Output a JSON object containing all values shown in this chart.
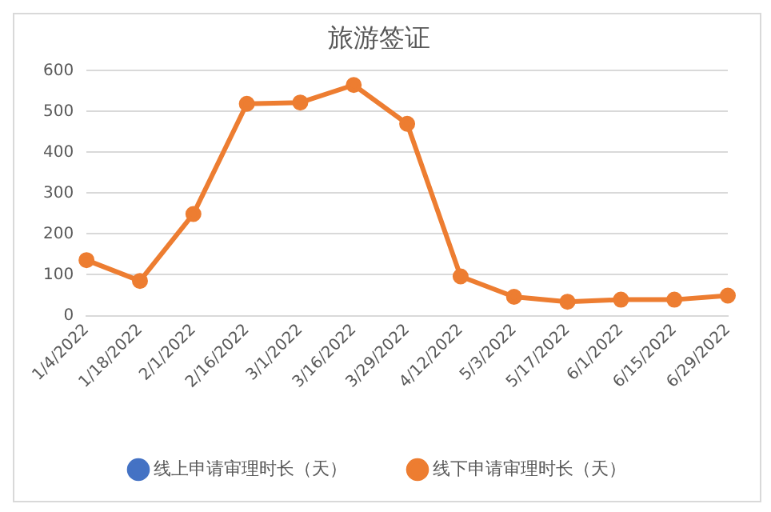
{
  "chart_data": {
    "type": "line",
    "title": "旅游签证",
    "categories": [
      "1/4/2022",
      "1/18/2022",
      "2/1/2022",
      "2/16/2022",
      "3/1/2022",
      "3/16/2022",
      "3/29/2022",
      "4/12/2022",
      "5/3/2022",
      "5/17/2022",
      "6/1/2022",
      "6/15/2022",
      "6/29/2022"
    ],
    "series": [
      {
        "name": "线上申请审理时长（天）",
        "color": "#4472c4",
        "values": [
          null,
          null,
          null,
          null,
          null,
          null,
          null,
          null,
          null,
          null,
          null,
          null,
          null
        ]
      },
      {
        "name": "线下申请审理时长（天）",
        "color": "#ed7d31",
        "values": [
          136,
          85,
          249,
          519,
          522,
          565,
          470,
          96,
          46,
          34,
          39,
          39,
          49
        ]
      }
    ],
    "ylim": [
      0,
      600
    ],
    "yticks": [
      0,
      100,
      200,
      300,
      400,
      500,
      600
    ],
    "grid": "y",
    "legend": "bottom",
    "marker": "circle",
    "line_style": "solid"
  }
}
